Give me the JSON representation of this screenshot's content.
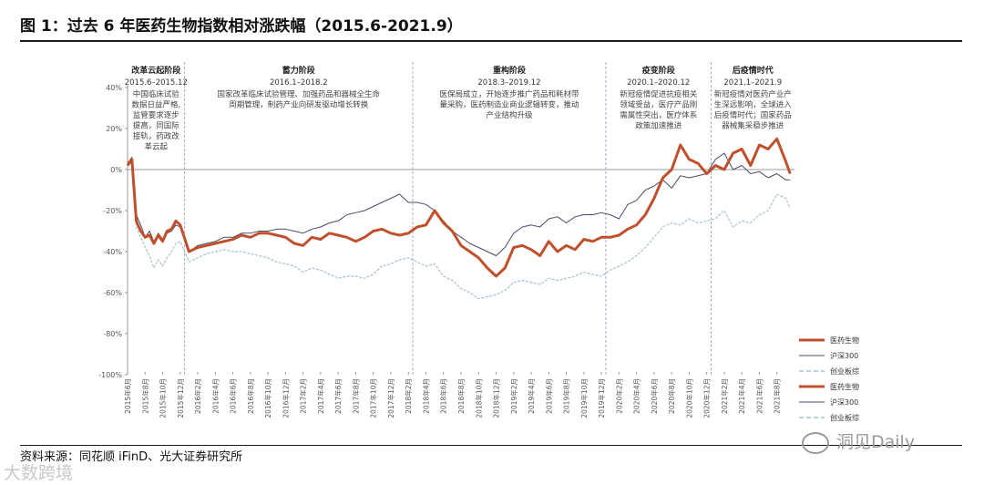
{
  "header": {
    "title": "图 1：过去 6 年医药生物指数相对涨跌幅（2015.6-2021.9）"
  },
  "footer": {
    "source": "资料来源：同花顺 iFinD、光大证券研究所",
    "watermark_right": "洞见Daily",
    "watermark_left": "大数跨境"
  },
  "chart_data": {
    "type": "line",
    "title": "",
    "xlabel": "",
    "ylabel": "",
    "ylim": [
      -100,
      40
    ],
    "yticks": [
      "40%",
      "20%",
      "0%",
      "-20%",
      "-40%",
      "-60%",
      "-80%",
      "-100%"
    ],
    "ytick_values": [
      40,
      20,
      0,
      -20,
      -40,
      -60,
      -80,
      -100
    ],
    "xticks": [
      "2015年6月",
      "2015年8月",
      "2015年10月",
      "2015年12月",
      "2016年2月",
      "2016年4月",
      "2016年6月",
      "2016年8月",
      "2016年10月",
      "2016年12月",
      "2017年2月",
      "2017年4月",
      "2017年6月",
      "2017年8月",
      "2017年10月",
      "2017年12月",
      "2018年2月",
      "2018年4月",
      "2018年6月",
      "2018年8月",
      "2018年10月",
      "2018年12月",
      "2019年2月",
      "2019年4月",
      "2019年6月",
      "2019年8月",
      "2019年10月",
      "2019年12月",
      "2020年2月",
      "2020年4月",
      "2020年6月",
      "2020年8月",
      "2020年10月",
      "2020年12月",
      "2021年2月",
      "2021年4月",
      "2021年6月",
      "2021年8月"
    ],
    "x_months": [
      0,
      2,
      4,
      6,
      8,
      10,
      12,
      14,
      16,
      18,
      20,
      22,
      24,
      26,
      28,
      30,
      32,
      34,
      36,
      38,
      40,
      42,
      44,
      46,
      48,
      50,
      52,
      54,
      56,
      58,
      60,
      62,
      64,
      66,
      68,
      70,
      72,
      74
    ],
    "x_range_months": [
      0,
      76
    ],
    "grid": false,
    "legend_position": "bottom-right",
    "phases": [
      {
        "name": "改革云起阶段",
        "dates": "2015.6–2015.12",
        "start_month": 0,
        "end_month": 6.5,
        "desc": [
          "中国临床试验",
          "数据日益严格,",
          "监管要求逐步",
          "提高，同国际",
          "接轨，药政改",
          "革云起"
        ]
      },
      {
        "name": "蓄力阶段",
        "dates": "2016.1–2018.2",
        "start_month": 6.5,
        "end_month": 32.5,
        "desc": [
          "国家改革临床试验管理、加强药品和器械全生命",
          "周期管理，制药产业向研发驱动增长转换"
        ]
      },
      {
        "name": "重构阶段",
        "dates": "2018.3–2019.12",
        "start_month": 32.5,
        "end_month": 54.5,
        "desc": [
          "医保局成立，开始逐步推广药品和耗材带",
          "量采购，医药制造业商业逻辑转变，推动",
          "产业结构升级"
        ]
      },
      {
        "name": "疫变阶段",
        "dates": "2020.1–2020.12",
        "start_month": 54.5,
        "end_month": 66.5,
        "desc": [
          "新冠疫情促进抗疫相关",
          "领域受益，医疗产品刚",
          "需属性突出，医疗体系",
          "政策加速推进"
        ]
      },
      {
        "name": "后疫情时代",
        "dates": "2021.1–2021.9",
        "start_month": 66.5,
        "end_month": 76,
        "desc": [
          "新冠疫情对医药产业产",
          "生深远影响，全球进入",
          "后疫情时代；国家药品",
          "器械集采稳步推进"
        ]
      }
    ],
    "legend": [
      {
        "name": "医药生物",
        "color": "#c0502b",
        "style": "thick"
      },
      {
        "name": "沪深300",
        "color": "#4a4a6a",
        "style": "thin"
      },
      {
        "name": "创业板综",
        "color": "#a9bfd2",
        "style": "dashed"
      },
      {
        "name": "医药生物",
        "color": "#c0502b",
        "style": "thick"
      },
      {
        "name": "沪深300",
        "color": "#4a4a6a",
        "style": "thin"
      },
      {
        "name": "创业板综",
        "color": "#a9bfd2",
        "style": "dashed"
      }
    ],
    "series": [
      {
        "name": "医药生物",
        "color": "#c0502b",
        "x": [
          0,
          0.5,
          1,
          1.5,
          2,
          2.5,
          3,
          3.5,
          4,
          4.5,
          5,
          5.5,
          6,
          7,
          8,
          9,
          10,
          11,
          12,
          13,
          14,
          15,
          16,
          17,
          18,
          19,
          20,
          21,
          22,
          23,
          24,
          25,
          26,
          27,
          28,
          29,
          30,
          31,
          32,
          33,
          34,
          35,
          36,
          37,
          38,
          39,
          40,
          41,
          42,
          43,
          44,
          45,
          46,
          47,
          48,
          49,
          50,
          51,
          52,
          53,
          54,
          55,
          56,
          57,
          58,
          59,
          60,
          61,
          62,
          63,
          64,
          65,
          66,
          67,
          68,
          69,
          70,
          71,
          72,
          73,
          74,
          75,
          75.5
        ],
        "values": [
          2,
          5,
          -25,
          -30,
          -33,
          -32,
          -36,
          -32,
          -35,
          -30,
          -29,
          -25,
          -27,
          -40,
          -38,
          -37,
          -36,
          -35,
          -34,
          -32,
          -33,
          -31,
          -31,
          -32,
          -33,
          -36,
          -37,
          -33,
          -34,
          -31,
          -32,
          -33,
          -35,
          -33,
          -30,
          -29,
          -31,
          -32,
          -31,
          -28,
          -27,
          -20,
          -26,
          -30,
          -37,
          -40,
          -43,
          -48,
          -52,
          -48,
          -38,
          -37,
          -39,
          -42,
          -35,
          -40,
          -37,
          -39,
          -34,
          -35,
          -33,
          -33,
          -32,
          -29,
          -27,
          -22,
          -14,
          -4,
          0,
          12,
          5,
          3,
          -2,
          2,
          0,
          8,
          10,
          2,
          12,
          10,
          15,
          4,
          -2
        ]
      },
      {
        "name": "沪深300",
        "color": "#4a4a6a",
        "x": [
          0,
          0.5,
          1,
          1.5,
          2,
          2.5,
          3,
          3.5,
          4,
          4.5,
          5,
          5.5,
          6,
          7,
          8,
          9,
          10,
          11,
          12,
          13,
          14,
          15,
          16,
          17,
          18,
          19,
          20,
          21,
          22,
          23,
          24,
          25,
          26,
          27,
          28,
          29,
          30,
          31,
          32,
          33,
          34,
          35,
          36,
          37,
          38,
          39,
          40,
          41,
          42,
          43,
          44,
          45,
          46,
          47,
          48,
          49,
          50,
          51,
          52,
          53,
          54,
          55,
          56,
          57,
          58,
          59,
          60,
          61,
          62,
          63,
          64,
          65,
          66,
          67,
          68,
          69,
          70,
          71,
          72,
          73,
          74,
          75,
          75.5
        ],
        "values": [
          3,
          6,
          -22,
          -27,
          -33,
          -30,
          -35,
          -31,
          -34,
          -31,
          -30,
          -27,
          -28,
          -40,
          -37,
          -36,
          -35,
          -33,
          -33,
          -31,
          -31,
          -30,
          -30,
          -29,
          -29,
          -30,
          -31,
          -29,
          -28,
          -26,
          -25,
          -22,
          -21,
          -20,
          -18,
          -16,
          -14,
          -12,
          -16,
          -16,
          -17,
          -20,
          -25,
          -30,
          -33,
          -36,
          -38,
          -40,
          -42,
          -38,
          -31,
          -28,
          -27,
          -28,
          -24,
          -23,
          -26,
          -23,
          -22,
          -22,
          -21,
          -22,
          -24,
          -17,
          -15,
          -10,
          -8,
          -5,
          -9,
          -3,
          -4,
          -3,
          -2,
          5,
          8,
          0,
          2,
          -2,
          -1,
          -4,
          -2,
          -5,
          -5
        ]
      },
      {
        "name": "创业板综",
        "color": "#a9bfd2",
        "x": [
          0,
          0.5,
          1,
          1.5,
          2,
          2.5,
          3,
          3.5,
          4,
          4.5,
          5,
          5.5,
          6,
          7,
          8,
          9,
          10,
          11,
          12,
          13,
          14,
          15,
          16,
          17,
          18,
          19,
          20,
          21,
          22,
          23,
          24,
          25,
          26,
          27,
          28,
          29,
          30,
          31,
          32,
          33,
          34,
          35,
          36,
          37,
          38,
          39,
          40,
          41,
          42,
          43,
          44,
          45,
          46,
          47,
          48,
          49,
          50,
          51,
          52,
          53,
          54,
          55,
          56,
          57,
          58,
          59,
          60,
          61,
          62,
          63,
          64,
          65,
          66,
          67,
          68,
          69,
          70,
          71,
          72,
          73,
          74,
          75,
          75.5
        ],
        "values": [
          4,
          4,
          -28,
          -33,
          -38,
          -42,
          -48,
          -44,
          -47,
          -43,
          -40,
          -36,
          -35,
          -45,
          -43,
          -41,
          -40,
          -39,
          -40,
          -40,
          -41,
          -42,
          -43,
          -45,
          -46,
          -47,
          -50,
          -48,
          -49,
          -51,
          -53,
          -52,
          -52,
          -53,
          -51,
          -47,
          -46,
          -44,
          -43,
          -45,
          -47,
          -46,
          -52,
          -54,
          -58,
          -60,
          -63,
          -62,
          -61,
          -59,
          -55,
          -54,
          -55,
          -56,
          -53,
          -54,
          -53,
          -52,
          -50,
          -51,
          -52,
          -49,
          -47,
          -45,
          -42,
          -38,
          -33,
          -28,
          -26,
          -27,
          -24,
          -26,
          -25,
          -24,
          -20,
          -28,
          -25,
          -26,
          -22,
          -20,
          -12,
          -14,
          -19
        ]
      }
    ]
  }
}
